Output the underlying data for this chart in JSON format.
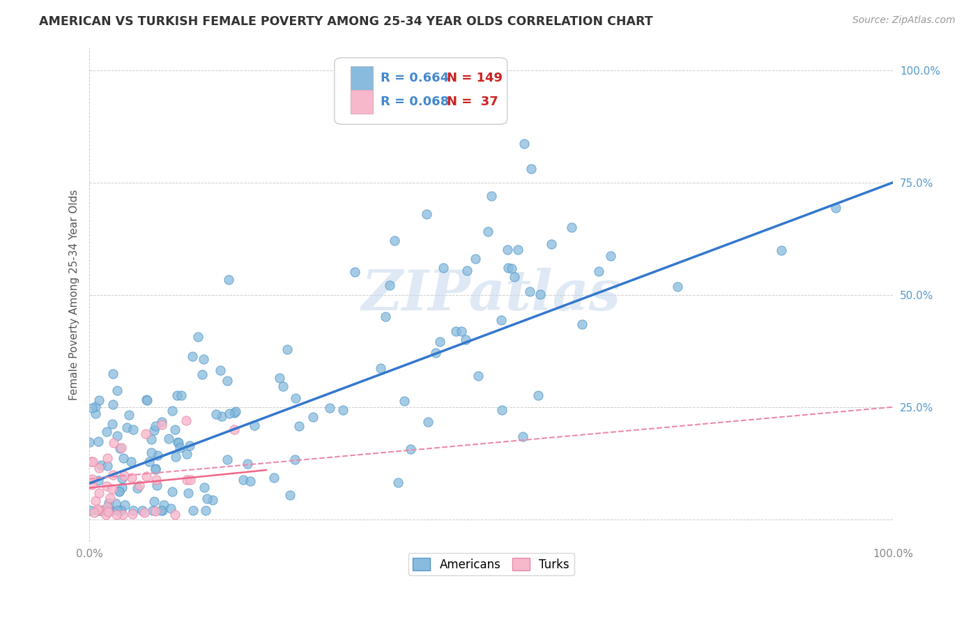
{
  "title": "AMERICAN VS TURKISH FEMALE POVERTY AMONG 25-34 YEAR OLDS CORRELATION CHART",
  "source": "Source: ZipAtlas.com",
  "ylabel": "Female Poverty Among 25-34 Year Olds",
  "xlim": [
    0,
    1
  ],
  "ylim": [
    -0.05,
    1.05
  ],
  "x_tick_labels": [
    "0.0%",
    "100.0%"
  ],
  "y_tick_labels": [
    "25.0%",
    "50.0%",
    "75.0%",
    "100.0%"
  ],
  "y_tick_positions": [
    0.25,
    0.5,
    0.75,
    1.0
  ],
  "american_R": "0.664",
  "american_N": "149",
  "turkish_R": "0.068",
  "turkish_N": "37",
  "american_color": "#88bbdd",
  "american_edge_color": "#5599cc",
  "turkish_color": "#f8b8cb",
  "turkish_edge_color": "#e888aa",
  "american_line_color": "#3377cc",
  "turkish_line_color": "#ee6688",
  "turkish_dash_color": "#ee88aa",
  "watermark": "ZIPatlas",
  "background_color": "#ffffff",
  "grid_color": "#aaaaaa",
  "legend_R_color": "#4488cc",
  "legend_N_color": "#cc2222",
  "ytick_color": "#5599cc",
  "xtick_color": "#888888",
  "am_line_intercept": 0.08,
  "am_line_slope": 0.67,
  "tr_line_intercept": 0.07,
  "tr_line_slope": 0.18,
  "tr_dash_intercept": 0.09,
  "tr_dash_slope": 0.16
}
